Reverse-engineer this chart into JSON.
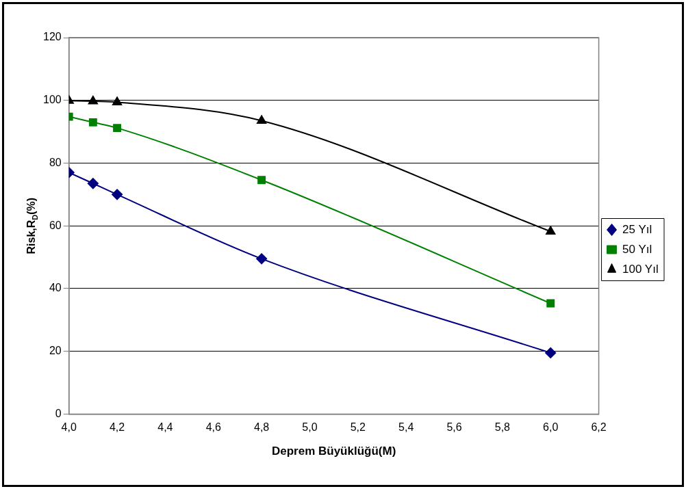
{
  "chart_data": {
    "type": "line",
    "xlabel": "Deprem Büyüklüğü(M)",
    "ylabel": "Risk,R$_{D}$(%)",
    "x": [
      4.0,
      4.1,
      4.2,
      4.8,
      6.0
    ],
    "series": [
      {
        "name": "25 Yıl",
        "color": "#000080",
        "marker": "diamond",
        "values": [
          77,
          73.5,
          70,
          49.5,
          19.5
        ]
      },
      {
        "name": "50 Yıl",
        "color": "#008000",
        "marker": "square",
        "values": [
          94.8,
          93,
          91.2,
          74.6,
          35.3
        ]
      },
      {
        "name": "100 Yıl",
        "color": "#000000",
        "marker": "triangle",
        "values": [
          99.9,
          99.7,
          99.4,
          93.5,
          58.2
        ]
      }
    ],
    "xlim": [
      4.0,
      6.2
    ],
    "xticks": [
      {
        "value": 4.0,
        "label": "4,0"
      },
      {
        "value": 4.2,
        "label": "4,2"
      },
      {
        "value": 4.4,
        "label": "4,4"
      },
      {
        "value": 4.6,
        "label": "4,6"
      },
      {
        "value": 4.8,
        "label": "4,8"
      },
      {
        "value": 5.0,
        "label": "5,0"
      },
      {
        "value": 5.2,
        "label": "5,2"
      },
      {
        "value": 5.4,
        "label": "5,4"
      },
      {
        "value": 5.6,
        "label": "5,6"
      },
      {
        "value": 5.8,
        "label": "5,8"
      },
      {
        "value": 6.0,
        "label": "6,0"
      },
      {
        "value": 6.2,
        "label": "6,2"
      }
    ],
    "ylim": [
      0,
      120
    ],
    "yticks": [
      0,
      20,
      40,
      60,
      80,
      100,
      120
    ],
    "grid": "y",
    "legend": "right",
    "line_style": "solid"
  }
}
